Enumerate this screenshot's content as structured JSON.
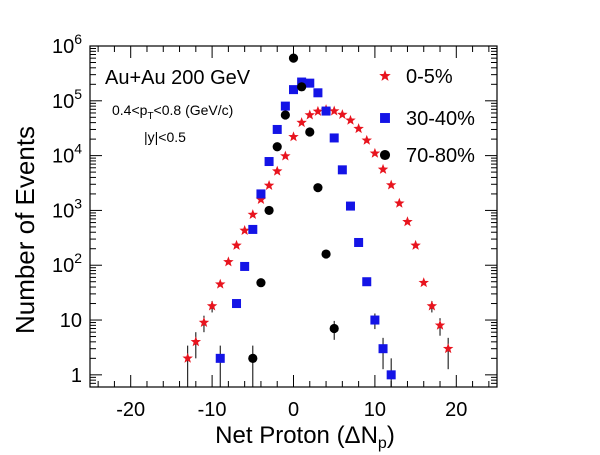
{
  "chart_data": {
    "type": "scatter",
    "ylog": true,
    "xlim": [
      -25,
      25
    ],
    "ylim": [
      0.6,
      1000000
    ],
    "xticks": [
      -20,
      -10,
      0,
      10,
      20
    ],
    "yticks": [
      1,
      10,
      100,
      1000,
      10000,
      100000,
      1000000
    ],
    "ytick_labels": [
      {
        "base": "1",
        "exp": ""
      },
      {
        "base": "10",
        "exp": ""
      },
      {
        "base": "10",
        "exp": "2"
      },
      {
        "base": "10",
        "exp": "3"
      },
      {
        "base": "10",
        "exp": "4"
      },
      {
        "base": "10",
        "exp": "5"
      },
      {
        "base": "10",
        "exp": "6"
      }
    ],
    "xlabel": {
      "main": "Net Proton (ΔN",
      "sub": "p",
      "close": ")"
    },
    "ylabel": "Number of Events",
    "annotations": {
      "system": "Au+Au 200 GeV",
      "pt_pre": "0.4<p",
      "pt_sub": "T",
      "pt_post": "<0.8 (GeV/c)",
      "rapidity": "|y|<0.5"
    },
    "series": [
      {
        "name": "0-5%",
        "marker": "star",
        "color": "#e8141e",
        "x": [
          -13,
          -12,
          -11,
          -10,
          -9,
          -8,
          -7,
          -6,
          -5,
          -4,
          -3,
          -2,
          -1,
          0,
          1,
          2,
          3,
          4,
          5,
          6,
          7,
          8,
          9,
          10,
          11,
          12,
          13,
          14,
          15,
          16,
          17,
          18,
          19
        ],
        "y": [
          2,
          4,
          9,
          18,
          45,
          115,
          230,
          430,
          840,
          1580,
          2850,
          5200,
          9800,
          22000,
          40000,
          55000,
          64000,
          69000,
          65000,
          56000,
          44000,
          31000,
          19000,
          11000,
          5600,
          2900,
          1350,
          620,
          230,
          48,
          18,
          8,
          3
        ]
      },
      {
        "name": "30-40%",
        "marker": "square",
        "color": "#1414e6",
        "x": [
          -9,
          -7,
          -6,
          -5,
          -4,
          -3,
          -2,
          -1,
          0,
          1,
          2,
          3,
          4,
          5,
          6,
          7,
          8,
          9,
          10,
          11,
          12
        ],
        "y": [
          2,
          20,
          95,
          450,
          2000,
          7800,
          30000,
          80000,
          160000,
          220000,
          210000,
          140000,
          65000,
          21000,
          5500,
          1200,
          260,
          50,
          10,
          3,
          1
        ]
      },
      {
        "name": "70-80%",
        "marker": "circle",
        "color": "#000000",
        "x": [
          -5,
          -4,
          -3,
          -2,
          -1,
          0,
          1,
          2,
          3,
          4,
          5
        ],
        "y": [
          2,
          48,
          1000,
          14500,
          55000,
          600000,
          180000,
          27000,
          2600,
          160,
          7
        ]
      }
    ],
    "legend_position": "top-right"
  }
}
